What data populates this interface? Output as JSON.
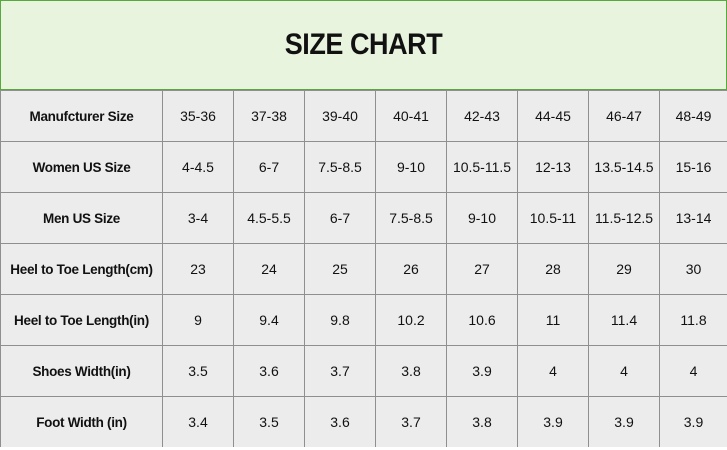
{
  "title": "SIZE CHART",
  "sizes": [
    "35-36",
    "37-38",
    "39-40",
    "40-41",
    "42-43",
    "44-45",
    "46-47",
    "48-49"
  ],
  "rows": [
    {
      "label": "Manufcturer Size",
      "values": [
        "35-36",
        "37-38",
        "39-40",
        "40-41",
        "42-43",
        "44-45",
        "46-47",
        "48-49"
      ]
    },
    {
      "label": "Women US Size",
      "values": [
        "4-4.5",
        "6-7",
        "7.5-8.5",
        "9-10",
        "10.5-11.5",
        "12-13",
        "13.5-14.5",
        "15-16"
      ]
    },
    {
      "label": "Men US Size",
      "values": [
        "3-4",
        "4.5-5.5",
        "6-7",
        "7.5-8.5",
        "9-10",
        "10.5-11",
        "11.5-12.5",
        "13-14"
      ]
    },
    {
      "label": "Heel to Toe Length(cm)",
      "values": [
        "23",
        "24",
        "25",
        "26",
        "27",
        "28",
        "29",
        "30"
      ]
    },
    {
      "label": "Heel to Toe Length(in)",
      "values": [
        "9",
        "9.4",
        "9.8",
        "10.2",
        "10.6",
        "11",
        "11.4",
        "11.8"
      ]
    },
    {
      "label": "Shoes Width(in)",
      "values": [
        "3.5",
        "3.6",
        "3.7",
        "3.8",
        "3.9",
        "4",
        "4",
        "4"
      ]
    },
    {
      "label": "Foot Width (in)",
      "values": [
        "3.4",
        "3.5",
        "3.6",
        "3.7",
        "3.8",
        "3.9",
        "3.9",
        "3.9"
      ]
    }
  ],
  "colors": {
    "title_background": "#e8f4dd",
    "title_border": "#57a83f",
    "table_background": "#ececec",
    "grid_line": "#8f8f8f",
    "text": "#111111"
  }
}
